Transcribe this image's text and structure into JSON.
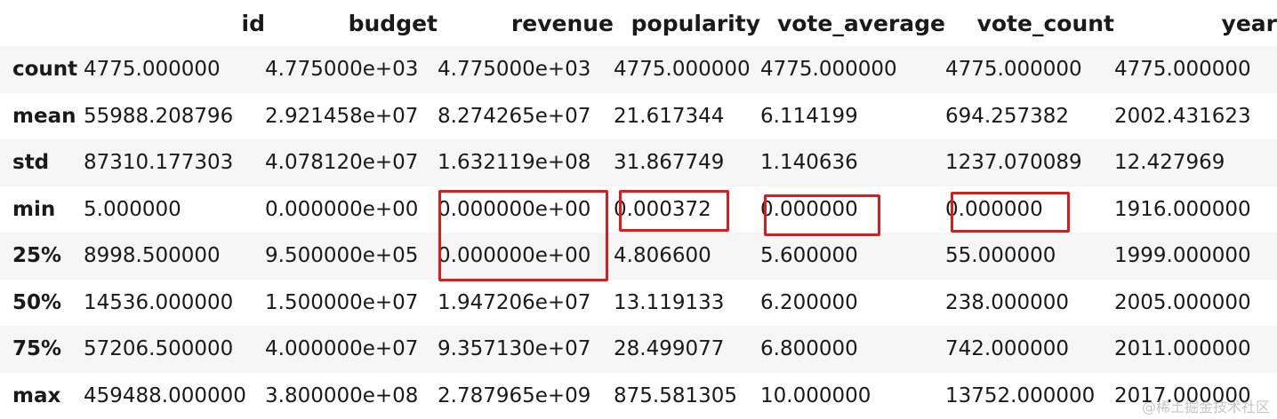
{
  "table": {
    "columns": [
      "",
      "id",
      "budget",
      "revenue",
      "popularity",
      "vote_average",
      "vote_count",
      "year"
    ],
    "rows": [
      {
        "label": "count",
        "values": [
          "4775.000000",
          "4.775000e+03",
          "4.775000e+03",
          "4775.000000",
          "4775.000000",
          "4775.000000",
          "4775.000000"
        ]
      },
      {
        "label": "mean",
        "values": [
          "55988.208796",
          "2.921458e+07",
          "8.274265e+07",
          "21.617344",
          "6.114199",
          "694.257382",
          "2002.431623"
        ]
      },
      {
        "label": "std",
        "values": [
          "87310.177303",
          "4.078120e+07",
          "1.632119e+08",
          "31.867749",
          "1.140636",
          "1237.070089",
          "12.427969"
        ]
      },
      {
        "label": "min",
        "values": [
          "5.000000",
          "0.000000e+00",
          "0.000000e+00",
          "0.000372",
          "0.000000",
          "0.000000",
          "1916.000000"
        ]
      },
      {
        "label": "25%",
        "values": [
          "8998.500000",
          "9.500000e+05",
          "0.000000e+00",
          "4.806600",
          "5.600000",
          "55.000000",
          "1999.000000"
        ]
      },
      {
        "label": "50%",
        "values": [
          "14536.000000",
          "1.500000e+07",
          "1.947206e+07",
          "13.119133",
          "6.200000",
          "238.000000",
          "2005.000000"
        ]
      },
      {
        "label": "75%",
        "values": [
          "57206.500000",
          "4.000000e+07",
          "9.357130e+07",
          "28.499077",
          "6.800000",
          "742.000000",
          "2011.000000"
        ]
      },
      {
        "label": "max",
        "values": [
          "459488.000000",
          "3.800000e+08",
          "2.787965e+09",
          "875.581305",
          "10.000000",
          "13752.000000",
          "2017.000000"
        ]
      }
    ]
  },
  "highlights": {
    "color": "#e0191c",
    "cells": [
      {
        "column": "revenue",
        "rows": [
          "min",
          "25%"
        ]
      },
      {
        "column": "popularity",
        "rows": [
          "min"
        ]
      },
      {
        "column": "vote_average",
        "rows": [
          "min"
        ]
      },
      {
        "column": "vote_count",
        "rows": [
          "min"
        ]
      }
    ]
  },
  "watermark": "@稀土掘金技术社区"
}
